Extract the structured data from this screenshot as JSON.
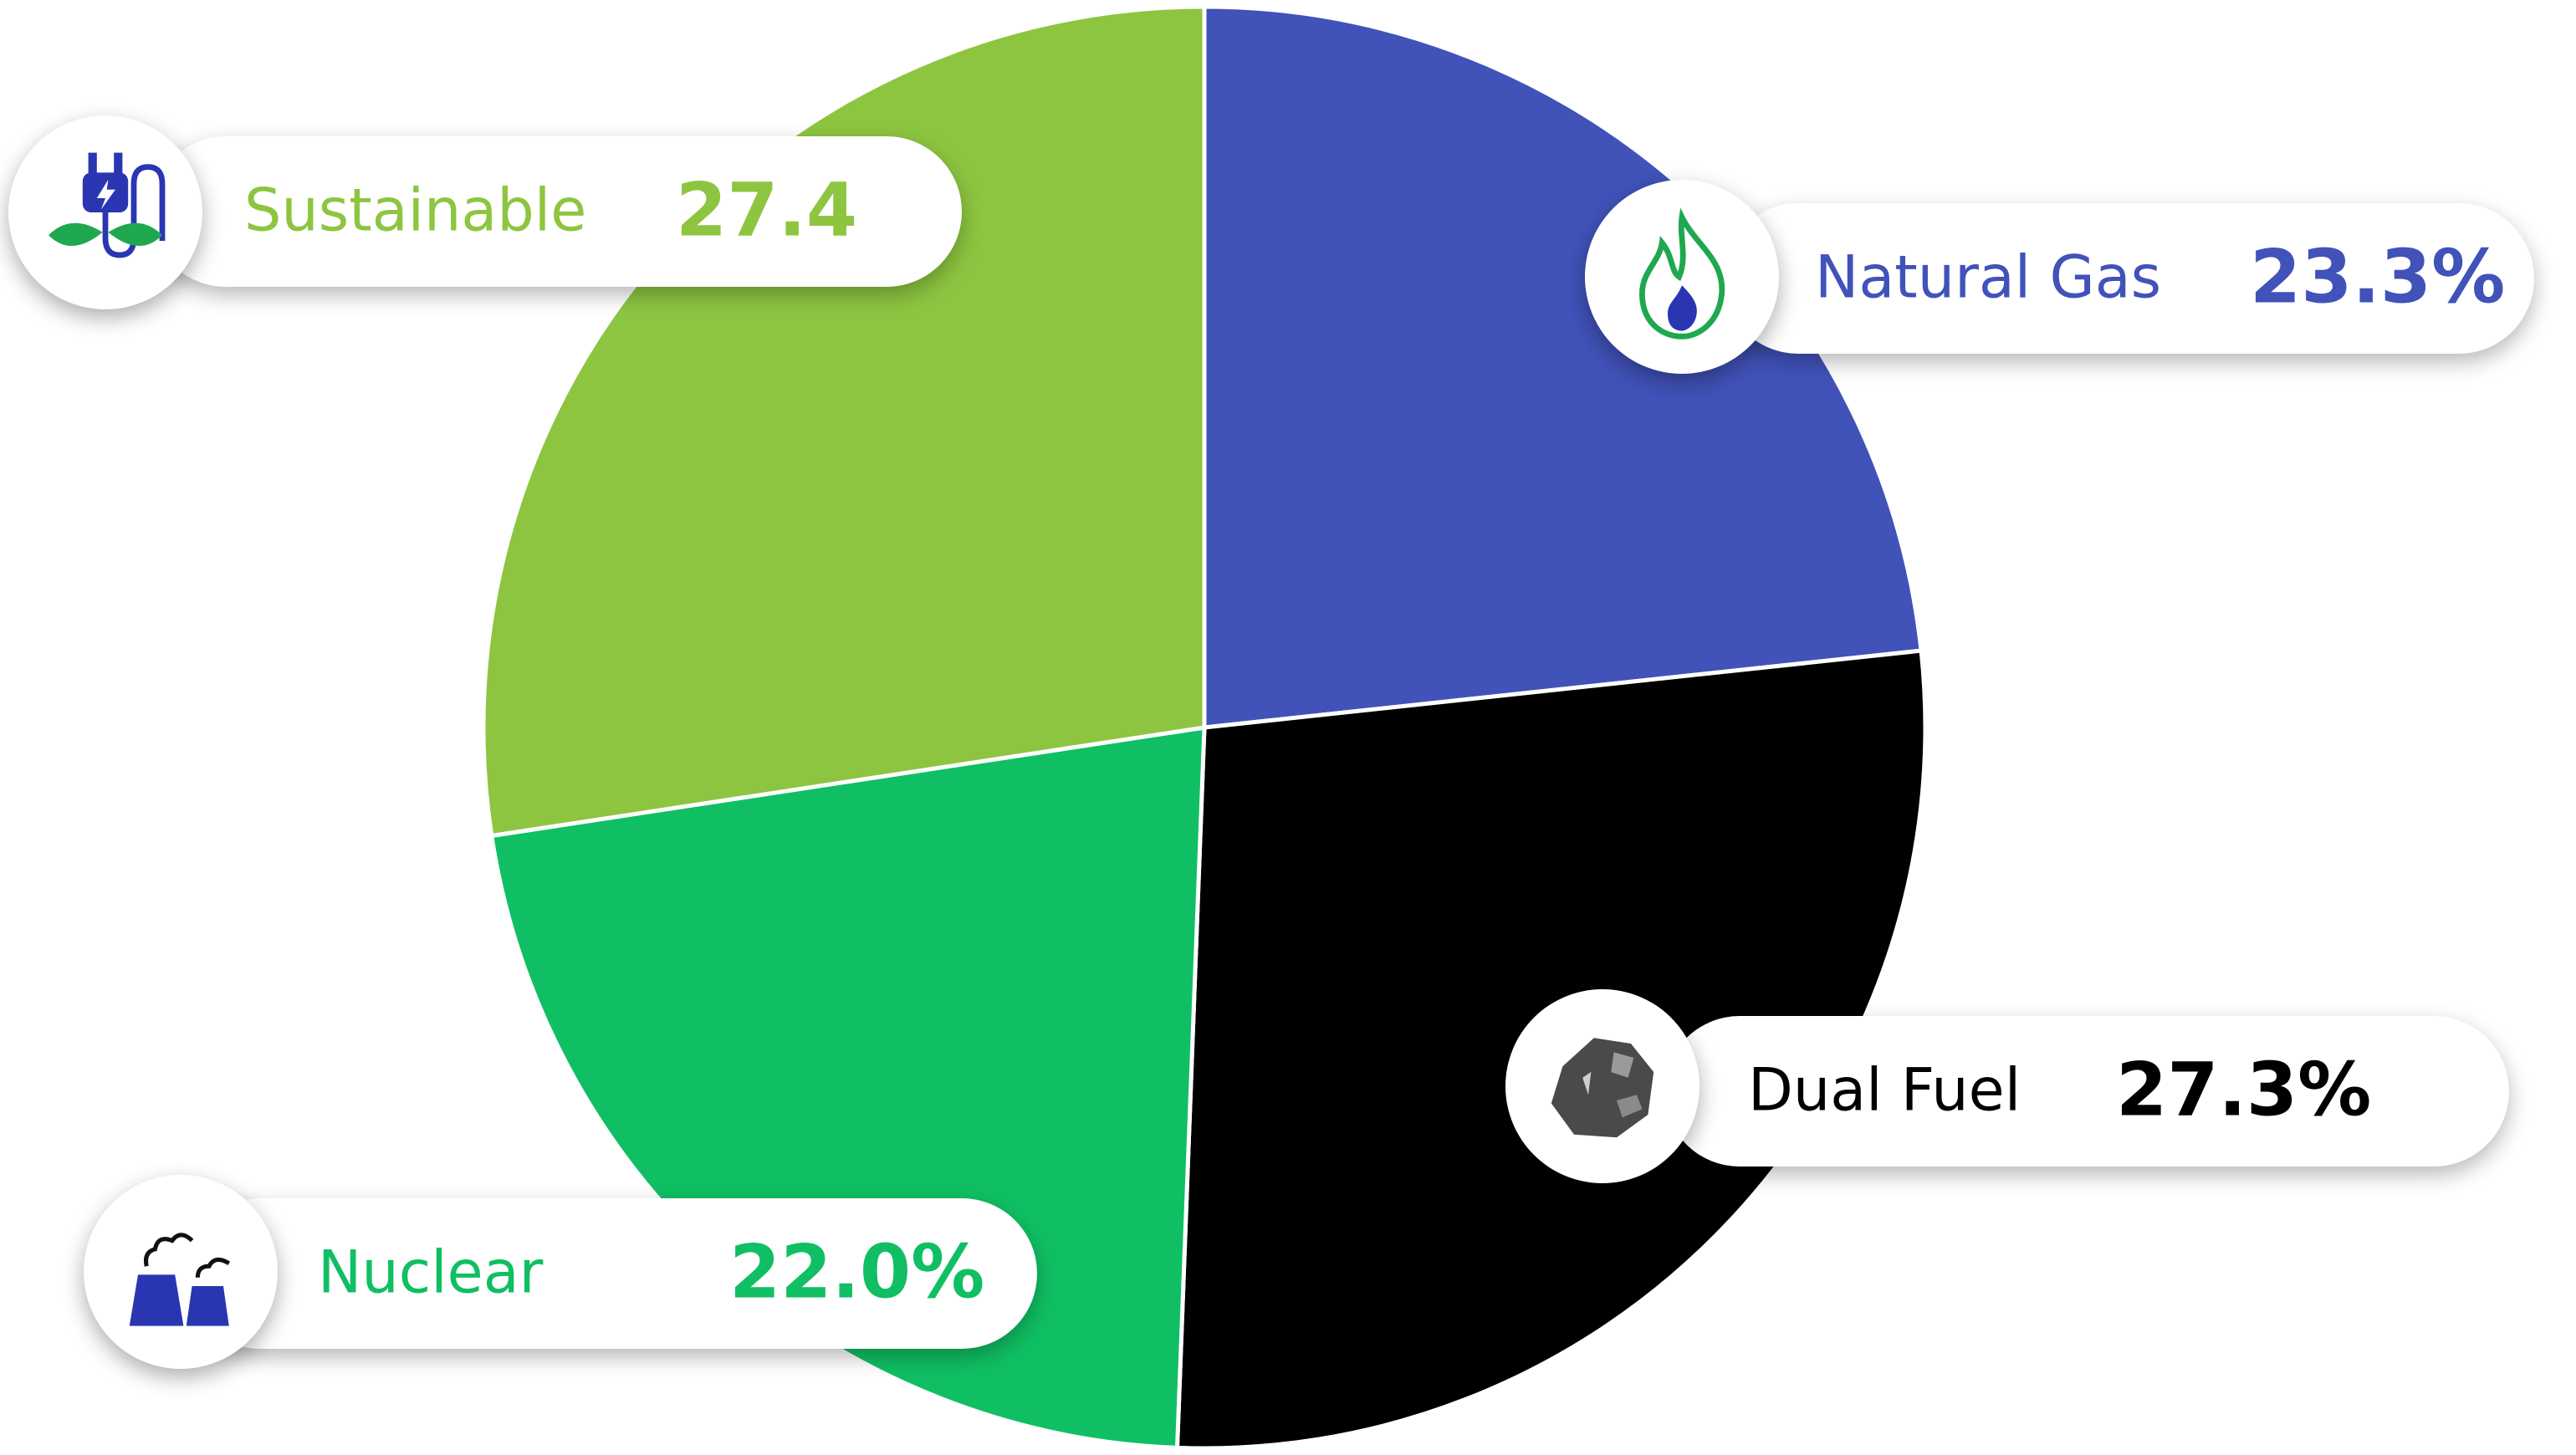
{
  "chart_data": {
    "type": "pie",
    "title": "",
    "slices": [
      {
        "label": "Natural Gas",
        "value": 23.3,
        "display": "23.3%",
        "color": "#4152B9",
        "icon": "gas-flame-icon"
      },
      {
        "label": "Dual Fuel",
        "value": 27.3,
        "display": "27.3%",
        "color": "#000000",
        "icon": "coal-icon"
      },
      {
        "label": "Nuclear",
        "value": 22.0,
        "display": "22.0%",
        "color": "#10BF63",
        "icon": "cooling-towers-icon"
      },
      {
        "label": "Sustainable",
        "value": 27.4,
        "display": "27.4",
        "color": "#8DC540",
        "icon": "eco-plug-icon"
      }
    ]
  }
}
